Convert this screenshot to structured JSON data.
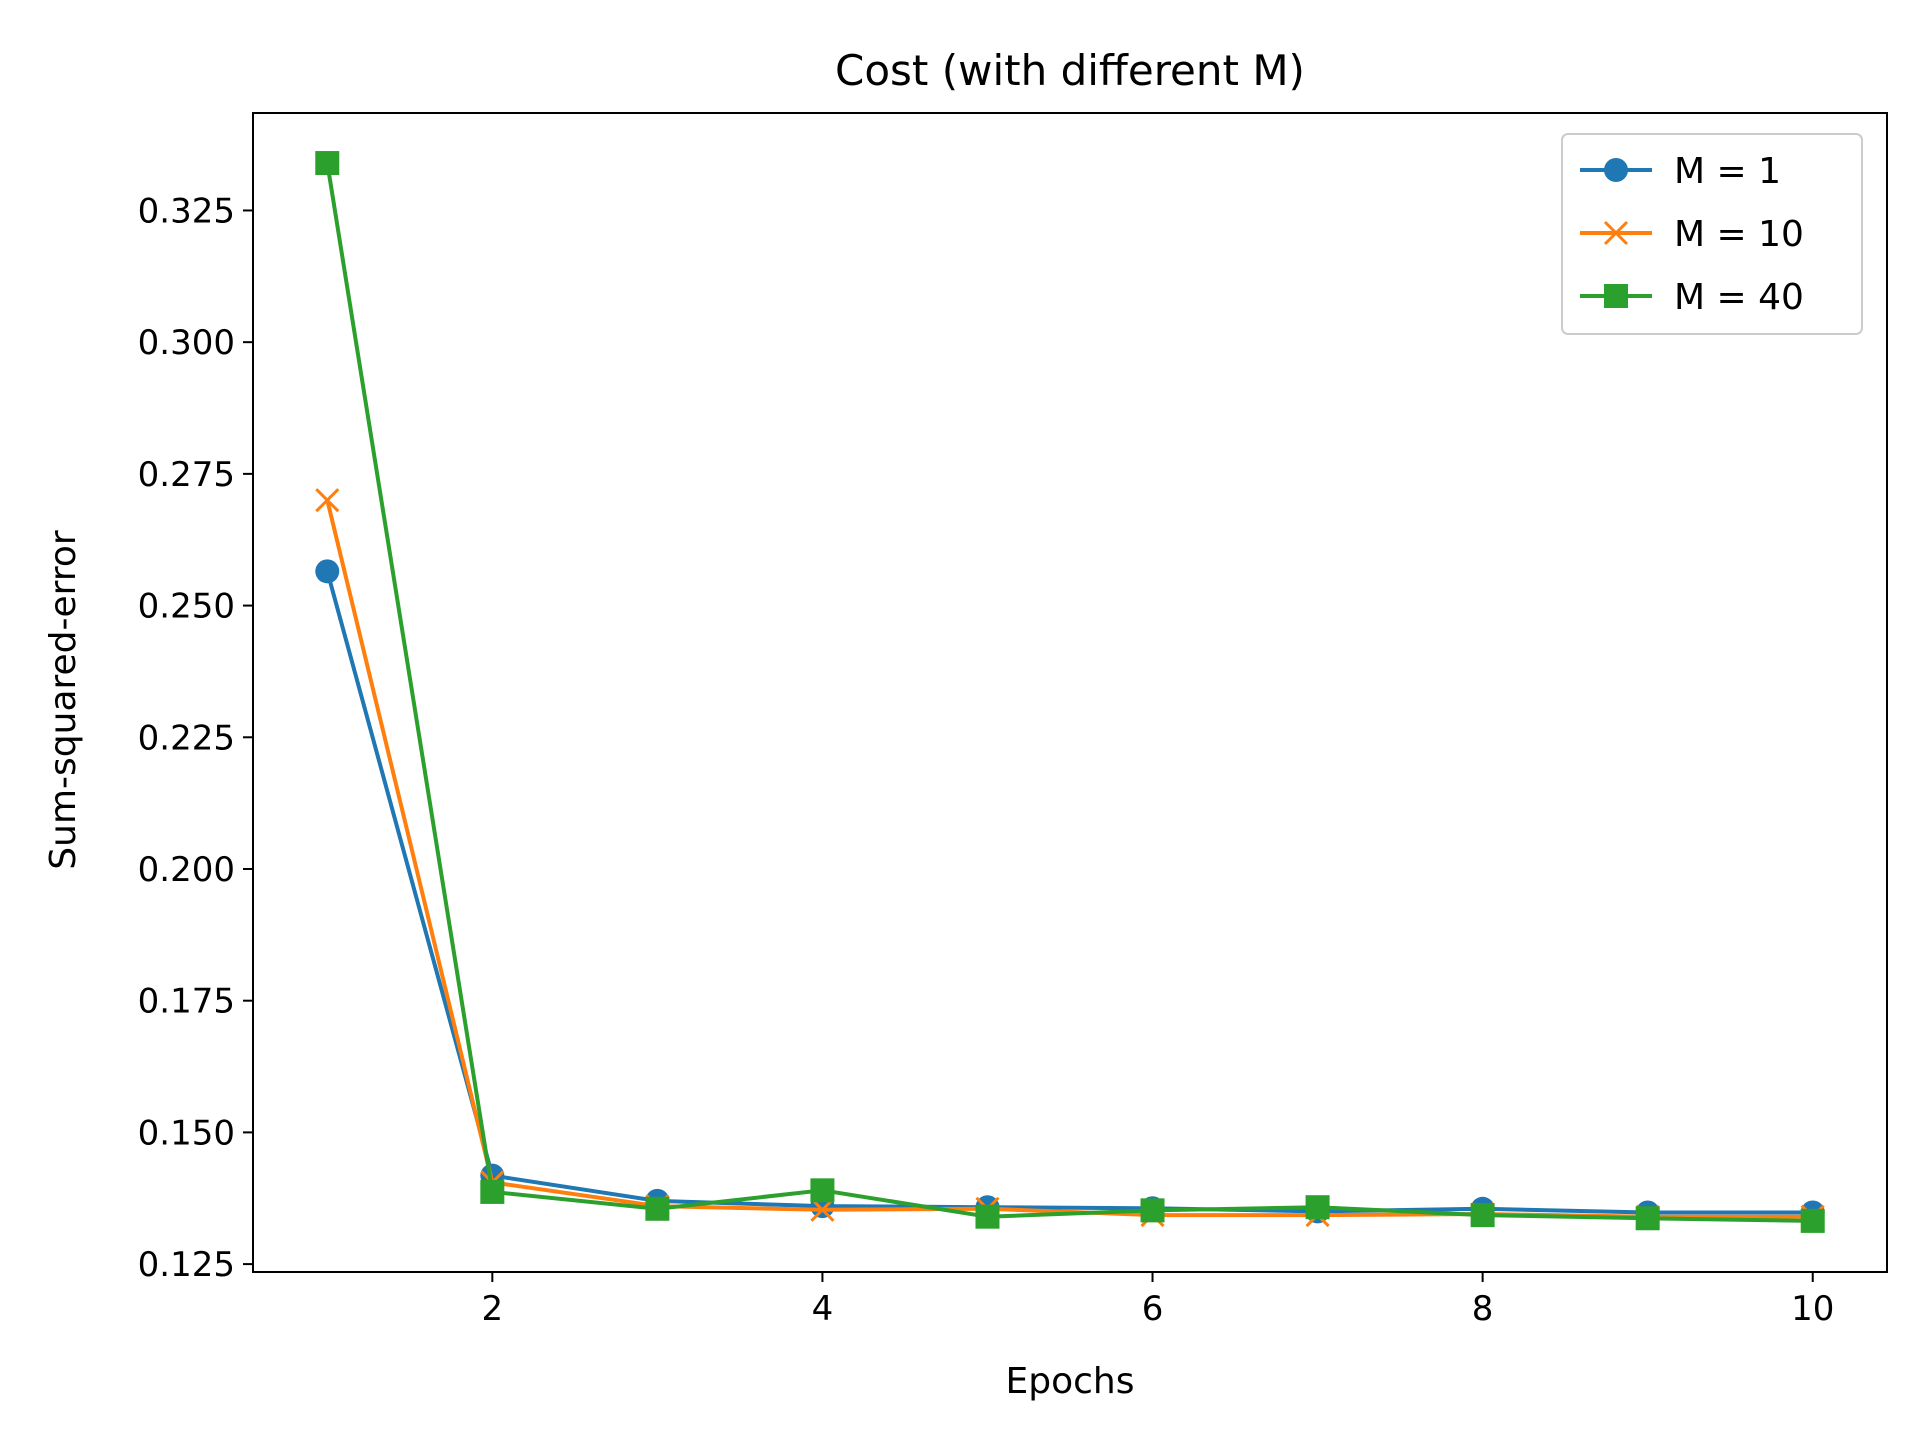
{
  "chart_data": {
    "type": "line",
    "title": "Cost (with different M)",
    "xlabel": "Epochs",
    "ylabel": "Sum-squared-error",
    "x": [
      1,
      2,
      3,
      4,
      5,
      6,
      7,
      8,
      9,
      10
    ],
    "xlim": [
      0.55,
      10.45
    ],
    "ylim": [
      0.1235,
      0.3435
    ],
    "xticks": [
      2,
      4,
      6,
      8,
      10
    ],
    "xtick_labels": [
      "2",
      "4",
      "6",
      "8",
      "10"
    ],
    "yticks": [
      0.125,
      0.15,
      0.175,
      0.2,
      0.225,
      0.25,
      0.275,
      0.3,
      0.325
    ],
    "ytick_labels": [
      "0.125",
      "0.150",
      "0.175",
      "0.200",
      "0.225",
      "0.250",
      "0.275",
      "0.300",
      "0.325"
    ],
    "grid": false,
    "legend_position": "top-right",
    "series": [
      {
        "name": "M = 1",
        "color": "#1f77b4",
        "marker": "circle",
        "values": [
          0.2565,
          0.1418,
          0.137,
          0.136,
          0.1358,
          0.1356,
          0.135,
          0.1355,
          0.1348,
          0.1348
        ]
      },
      {
        "name": "M = 10",
        "color": "#ff7f0e",
        "marker": "x",
        "values": [
          0.27,
          0.1405,
          0.136,
          0.1353,
          0.1355,
          0.1343,
          0.1343,
          0.1345,
          0.134,
          0.134
        ]
      },
      {
        "name": "M = 40",
        "color": "#2ca02c",
        "marker": "square",
        "values": [
          0.334,
          0.1387,
          0.1355,
          0.139,
          0.134,
          0.1352,
          0.1358,
          0.1343,
          0.1337,
          0.1332
        ]
      }
    ]
  }
}
